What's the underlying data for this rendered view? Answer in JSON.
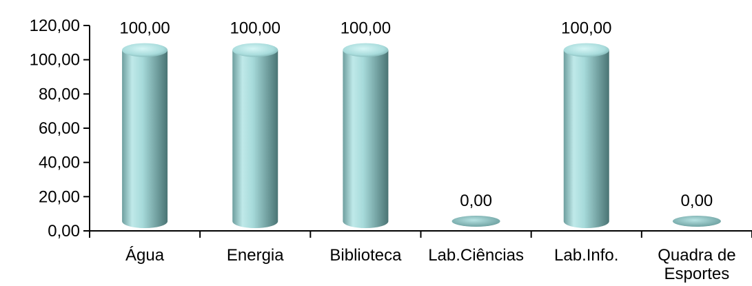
{
  "chart_data": {
    "type": "bar",
    "categories": [
      "Água",
      "Energia",
      "Biblioteca",
      "Lab.Ciências",
      "Lab.Info.",
      "Quadra de Esportes"
    ],
    "values": [
      100.0,
      100.0,
      100.0,
      0.0,
      100.0,
      0.0
    ],
    "data_labels": [
      "100,00",
      "100,00",
      "100,00",
      "0,00",
      "100,00",
      "0,00"
    ],
    "y_ticks": [
      "0,00",
      "20,00",
      "40,00",
      "60,00",
      "80,00",
      "100,00",
      "120,00"
    ],
    "ylim": [
      0,
      120
    ],
    "title": "",
    "xlabel": "",
    "ylabel": "",
    "grid": false,
    "legend": "none",
    "colors": {
      "bar_light": "#c9f0f0",
      "bar_mid": "#8ecaca",
      "bar_dark": "#4f7c7c",
      "axis": "#000000"
    }
  }
}
